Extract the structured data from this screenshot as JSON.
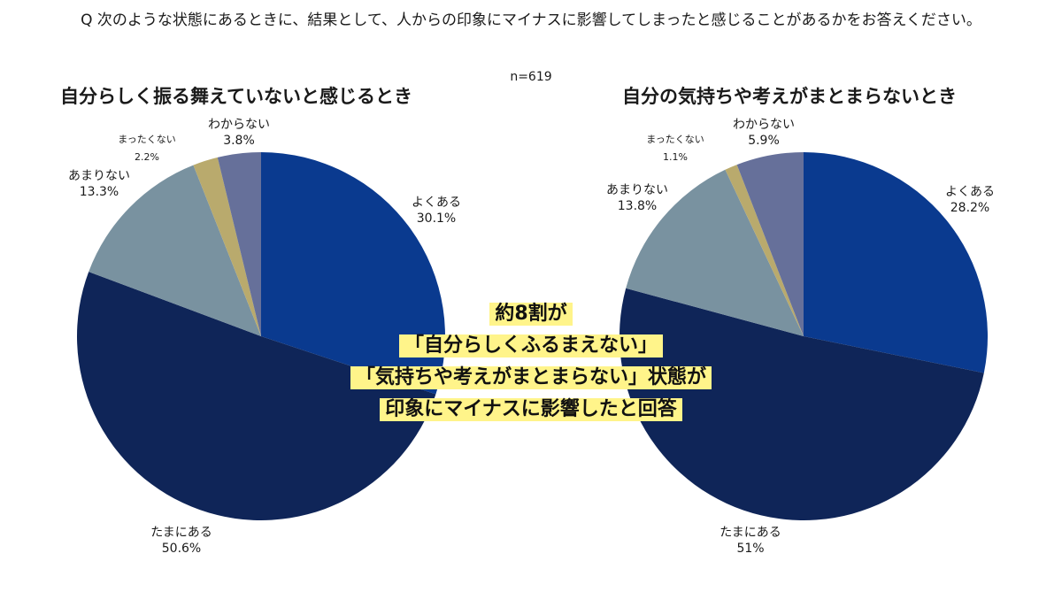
{
  "question": "Q 次のような状態にあるときに、結果として、人からの印象にマイナスに影響してしまったと感じることがあるかをお答えください。",
  "sample_size": "n=619",
  "colors": {
    "よくある": "#0a3a8f",
    "たまにある": "#0f2558",
    "あまりない": "#7992a0",
    "まったくない": "#b9aa6d",
    "わからない": "#66709a",
    "highlight": "#fff48a"
  },
  "chart_data": [
    {
      "type": "pie",
      "title": "自分らしく振る舞えていないと感じるとき",
      "slices": [
        {
          "label": "よくある",
          "value": 30.1,
          "display": "30.1%"
        },
        {
          "label": "たまにある",
          "value": 50.6,
          "display": "50.6%"
        },
        {
          "label": "あまりない",
          "value": 13.3,
          "display": "13.3%"
        },
        {
          "label": "まったくない",
          "value": 2.2,
          "display": "2.2%"
        },
        {
          "label": "わからない",
          "value": 3.8,
          "display": "3.8%"
        }
      ]
    },
    {
      "type": "pie",
      "title": "自分の気持ちや考えがまとまらないとき",
      "slices": [
        {
          "label": "よくある",
          "value": 28.2,
          "display": "28.2%"
        },
        {
          "label": "たまにある",
          "value": 51.0,
          "display": "51%"
        },
        {
          "label": "あまりない",
          "value": 13.8,
          "display": "13.8%"
        },
        {
          "label": "まったくない",
          "value": 1.1,
          "display": "1.1%"
        },
        {
          "label": "わからない",
          "value": 5.9,
          "display": "5.9%"
        }
      ]
    }
  ],
  "callout": [
    "約8割が",
    "「自分らしくふるまえない」",
    "「気持ちや考えがまとまらない」状態が",
    "印象にマイナスに影響したと回答"
  ]
}
